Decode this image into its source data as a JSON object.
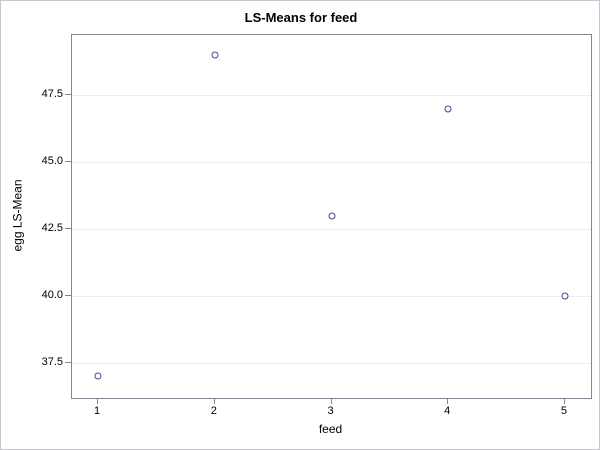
{
  "chart_data": {
    "type": "scatter",
    "title": "LS-Means for feed",
    "xlabel": "feed",
    "ylabel": "egg LS-Mean",
    "x": [
      1,
      2,
      3,
      4,
      5
    ],
    "y": [
      37,
      49,
      43,
      47,
      40
    ],
    "xticks": [
      1,
      2,
      3,
      4,
      5
    ],
    "xtick_labels": [
      "1",
      "2",
      "3",
      "4",
      "5"
    ],
    "yticks": [
      37.5,
      40.0,
      42.5,
      45.0,
      47.5
    ],
    "ytick_labels": [
      "37.5",
      "40.0",
      "42.5",
      "45.0",
      "47.5"
    ],
    "xlim": [
      0.777,
      5.223
    ],
    "ylim": [
      36.19,
      49.76
    ],
    "grid": "horizontal",
    "legend": "none",
    "marker": "open-circle",
    "colors": {
      "marker": "#3a4d8f",
      "plot_border": "#7e8794",
      "gridline": "#ececef",
      "tick": "#7e8794",
      "figure_border": "#c5c7cb",
      "text": "#000000",
      "background": "#ffffff"
    }
  }
}
